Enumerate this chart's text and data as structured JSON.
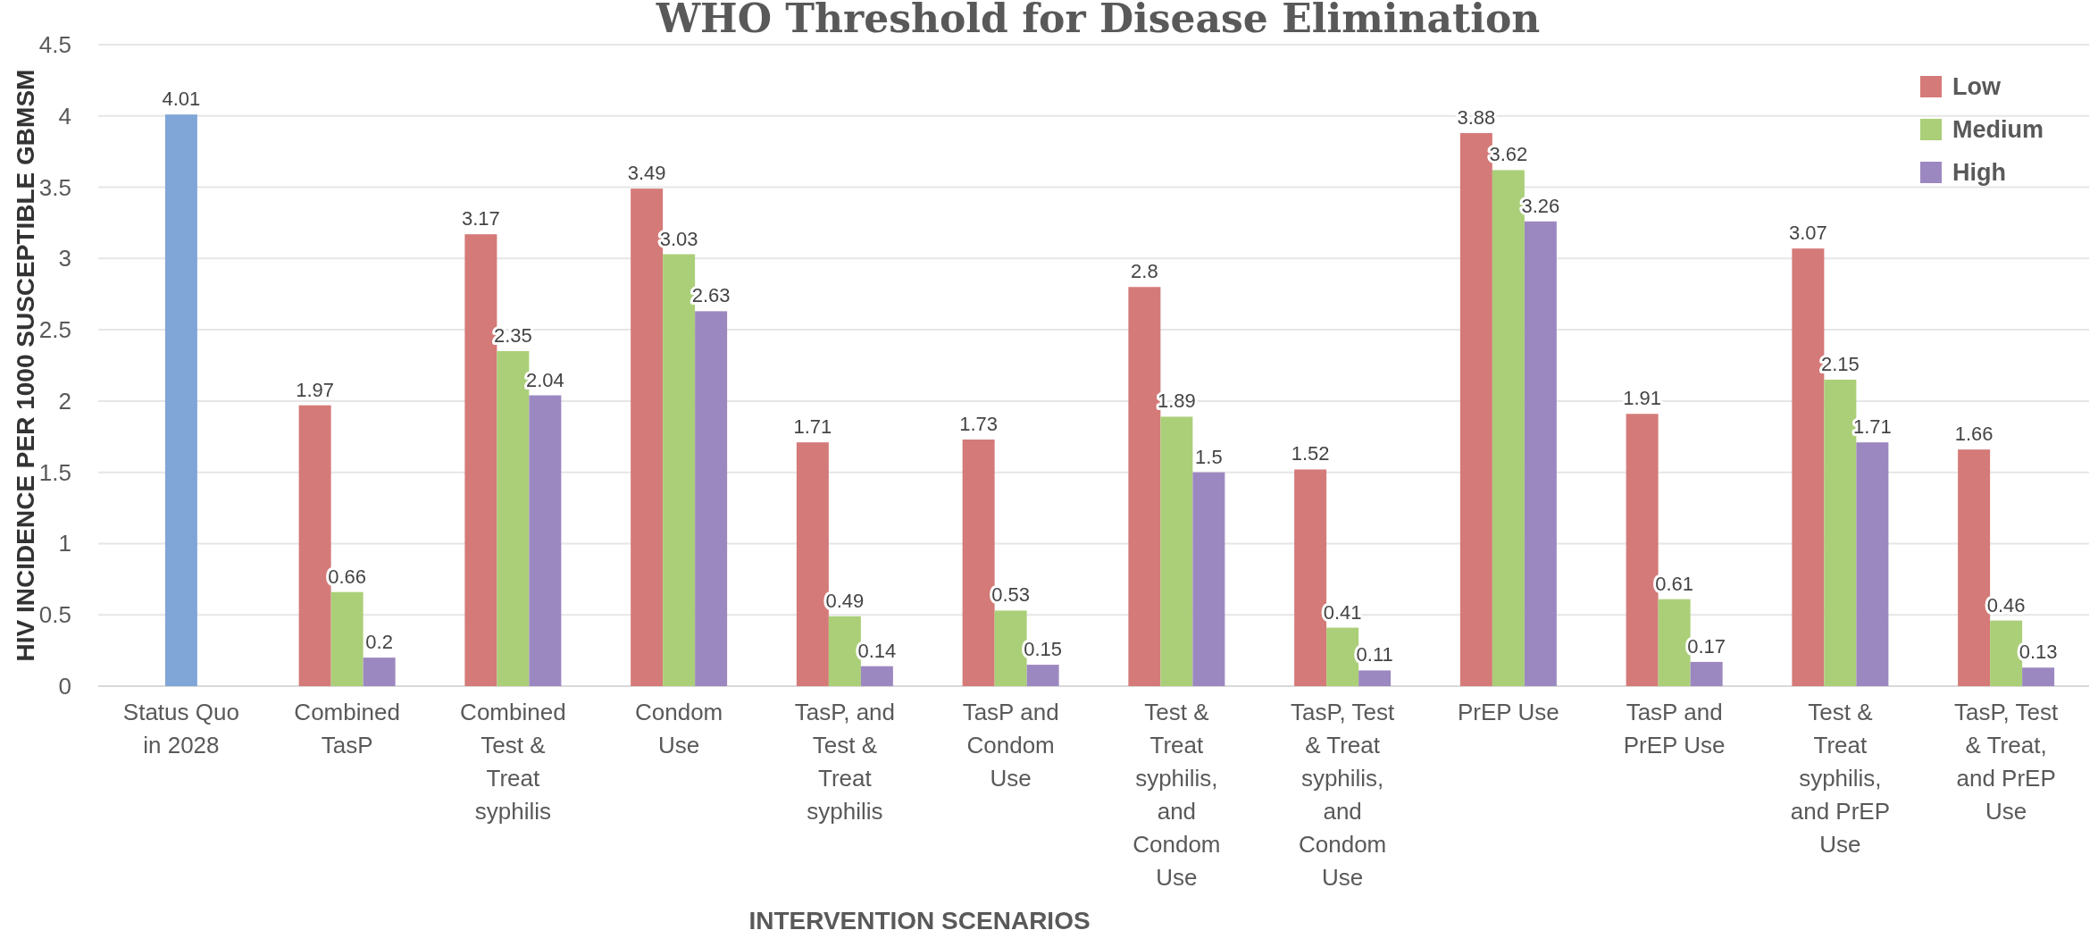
{
  "chart_data": {
    "type": "bar",
    "title": "WHO Threshold for Disease Elimination",
    "xlabel": "INTERVENTION SCENARIOS",
    "ylabel": "HIV INCIDENCE PER 1000 SUSCEPTIBLE GBMSM",
    "categories": [
      "Status Quo in 2028",
      "Combined TasP",
      "Combined Test & Treat syphilis",
      "Condom Use",
      "TasP, and Test & Treat syphilis",
      "TasP and Condom Use",
      "Test & Treat syphilis, and Condom Use",
      "TasP, Test & Treat syphilis, and Condom Use",
      "PrEP Use",
      "TasP and PrEP Use",
      "Test & Treat syphilis, and PrEP Use",
      "TasP, Test & Treat, and PrEP Use"
    ],
    "series": [
      {
        "color": "#7fa6d6",
        "values": [
          4.01,
          null,
          null,
          null,
          null,
          null,
          null,
          null,
          null,
          null,
          null,
          null
        ]
      },
      {
        "name": "Low",
        "color": "#d47a78",
        "values": [
          null,
          1.97,
          3.17,
          3.49,
          1.71,
          1.73,
          2.8,
          1.52,
          3.88,
          1.91,
          3.07,
          1.66
        ]
      },
      {
        "name": "Medium",
        "color": "#abcf78",
        "values": [
          null,
          0.66,
          2.35,
          3.03,
          0.49,
          0.53,
          1.89,
          0.41,
          3.62,
          0.61,
          2.15,
          0.46
        ]
      },
      {
        "name": "High",
        "color": "#9c88c0",
        "values": [
          null,
          0.2,
          2.04,
          2.63,
          0.14,
          0.15,
          1.5,
          0.11,
          3.26,
          0.17,
          1.71,
          0.13
        ]
      }
    ],
    "ylim": [
      0,
      4.5
    ],
    "yticks": [
      0,
      0.5,
      1,
      1.5,
      2,
      2.5,
      3,
      3.5,
      4,
      4.5
    ],
    "grid": "y",
    "legend": "top right",
    "data_labels": true
  }
}
